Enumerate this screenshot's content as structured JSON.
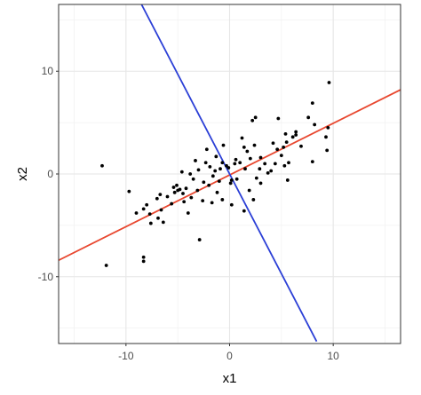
{
  "chart_data": {
    "type": "scatter",
    "xlabel": "x1",
    "ylabel": "x2",
    "xlim": [
      -16.5,
      16.5
    ],
    "ylim": [
      -16.5,
      16.5
    ],
    "x_ticks": [
      -10,
      0,
      10
    ],
    "x_tick_labels": [
      "-10",
      "0",
      "10"
    ],
    "y_ticks": [
      -10,
      0,
      10
    ],
    "y_tick_labels": [
      "-10",
      "0",
      "10"
    ],
    "grid": true,
    "legend": "none",
    "colors": {
      "points": "#000000",
      "line_major": "#e8472f",
      "line_minor": "#2b3fd6",
      "grid_major": "#e6e6e6",
      "grid_minor": "#f2f2f2",
      "panel_border": "#333333"
    },
    "lines": [
      {
        "color": "red",
        "x": [
          -16.5,
          16.5
        ],
        "y": [
          -8.4,
          8.2
        ]
      },
      {
        "color": "blue",
        "x": [
          -8.5,
          8.4
        ],
        "y": [
          16.5,
          -16.3
        ]
      }
    ],
    "points": [
      [
        9.6,
        8.9
      ],
      [
        9.5,
        4.5
      ],
      [
        9.3,
        3.6
      ],
      [
        9.4,
        2.3
      ],
      [
        8.2,
        4.8
      ],
      [
        7.6,
        5.5
      ],
      [
        8.0,
        6.9
      ],
      [
        6.4,
        3.8
      ],
      [
        6.1,
        3.6
      ],
      [
        5.5,
        3.1
      ],
      [
        5.2,
        2.6
      ],
      [
        5.0,
        1.8
      ],
      [
        4.6,
        2.4
      ],
      [
        4.4,
        1.0
      ],
      [
        4.2,
        3.0
      ],
      [
        5.3,
        0.8
      ],
      [
        5.4,
        3.9
      ],
      [
        5.7,
        1.1
      ],
      [
        5.6,
        -0.6
      ],
      [
        4.0,
        0.3
      ],
      [
        3.4,
        1.0
      ],
      [
        2.9,
        0.5
      ],
      [
        2.4,
        2.8
      ],
      [
        2.5,
        5.5
      ],
      [
        2.2,
        5.2
      ],
      [
        3.0,
        1.6
      ],
      [
        2.6,
        -0.4
      ],
      [
        3.0,
        -0.9
      ],
      [
        2.0,
        1.5
      ],
      [
        1.9,
        -1.6
      ],
      [
        1.5,
        0.5
      ],
      [
        1.7,
        2.2
      ],
      [
        1.2,
        3.5
      ],
      [
        1.0,
        1.1
      ],
      [
        0.6,
        1.4
      ],
      [
        0.7,
        -0.5
      ],
      [
        0.5,
        1.0
      ],
      [
        0.2,
        -0.6
      ],
      [
        0.1,
        -0.9
      ],
      [
        -0.1,
        0.6
      ],
      [
        -0.3,
        0.8
      ],
      [
        -0.6,
        2.8
      ],
      [
        -0.7,
        1.1
      ],
      [
        -0.9,
        0.5
      ],
      [
        -1.0,
        -0.7
      ],
      [
        -1.2,
        -1.8
      ],
      [
        -1.3,
        1.7
      ],
      [
        -1.4,
        0.3
      ],
      [
        -1.6,
        -0.2
      ],
      [
        -1.9,
        0.7
      ],
      [
        -2.0,
        -1.1
      ],
      [
        -2.2,
        2.4
      ],
      [
        -2.3,
        1.1
      ],
      [
        -2.5,
        -0.8
      ],
      [
        -2.6,
        -2.6
      ],
      [
        -3.0,
        0.4
      ],
      [
        -3.1,
        -1.6
      ],
      [
        -3.3,
        1.3
      ],
      [
        -3.5,
        -0.5
      ],
      [
        -3.7,
        -2.3
      ],
      [
        -3.8,
        0.0
      ],
      [
        -4.2,
        -1.4
      ],
      [
        -4.4,
        -2.7
      ],
      [
        -4.5,
        -1.9
      ],
      [
        -4.6,
        0.2
      ],
      [
        -4.8,
        -1.5
      ],
      [
        -5.0,
        -1.6
      ],
      [
        -5.1,
        -1.1
      ],
      [
        -5.3,
        -1.8
      ],
      [
        -5.4,
        -1.3
      ],
      [
        -5.6,
        -2.9
      ],
      [
        -6.0,
        -2.2
      ],
      [
        -6.4,
        -4.7
      ],
      [
        -6.6,
        -3.5
      ],
      [
        -6.9,
        -4.3
      ],
      [
        -7.0,
        -2.4
      ],
      [
        -7.6,
        -4.8
      ],
      [
        -7.7,
        -3.9
      ],
      [
        -8.3,
        -3.4
      ],
      [
        -8.0,
        -3.0
      ],
      [
        -9.7,
        -1.7
      ],
      [
        -12.3,
        0.8
      ],
      [
        -11.9,
        -8.9
      ],
      [
        -8.3,
        -8.5
      ],
      [
        -8.3,
        -8.1
      ],
      [
        -2.9,
        -6.4
      ],
      [
        -0.7,
        -2.5
      ],
      [
        -1.7,
        -2.8
      ],
      [
        0.2,
        -3.0
      ],
      [
        1.4,
        -3.6
      ],
      [
        2.3,
        -2.5
      ],
      [
        3.7,
        0.1
      ],
      [
        6.4,
        4.1
      ],
      [
        6.9,
        2.7
      ],
      [
        8.0,
        1.2
      ],
      [
        4.7,
        5.4
      ],
      [
        1.4,
        2.6
      ],
      [
        -4.0,
        -3.8
      ],
      [
        -6.7,
        -2.0
      ],
      [
        -9.0,
        -3.8
      ]
    ]
  }
}
